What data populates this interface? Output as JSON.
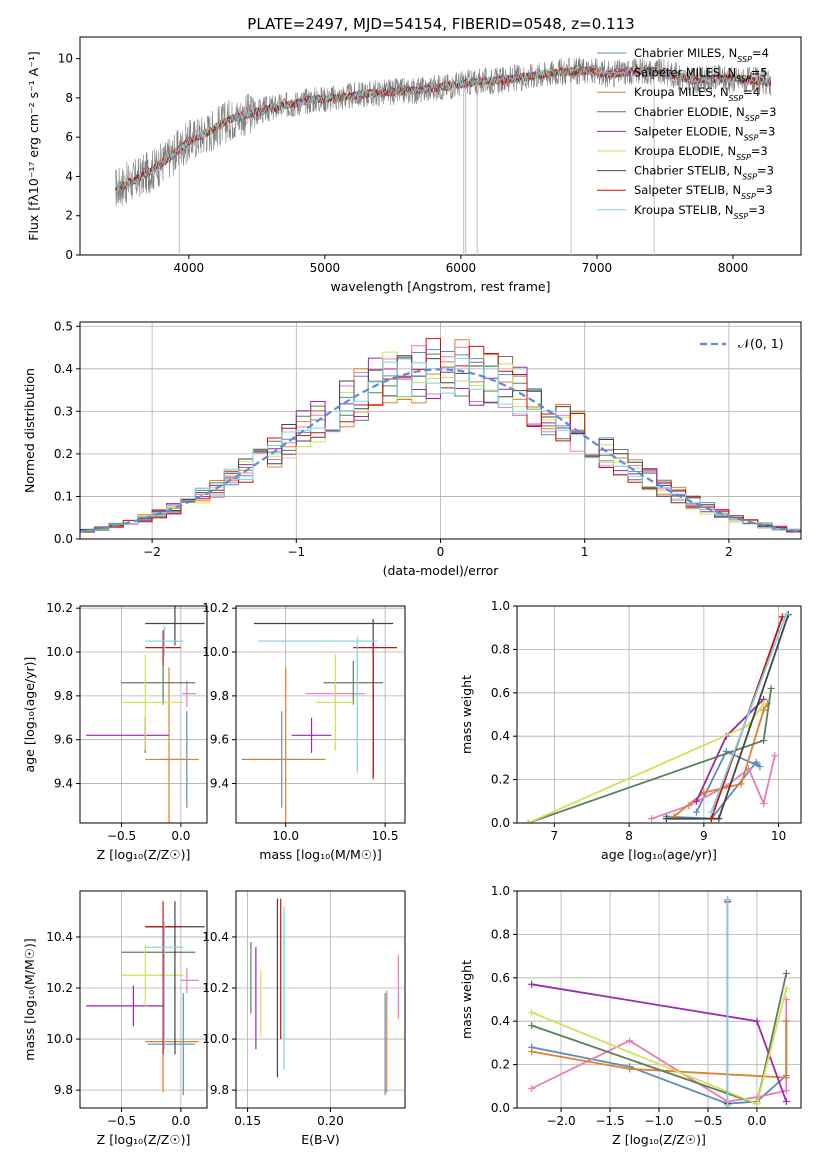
{
  "figure": {
    "title": "PLATE=2497, MJD=54154, FIBERID=0548, z=0.113"
  },
  "models": [
    {
      "name": "Chabrier MILES",
      "nssp": "4",
      "color": "#5a8dbf"
    },
    {
      "name": "Salpeter MILES",
      "nssp": "5",
      "color": "#e87db8"
    },
    {
      "name": "Kroupa MILES",
      "nssp": "4",
      "color": "#e0822d"
    },
    {
      "name": "Chabrier ELODIE",
      "nssp": "3",
      "color": "#5c7f5c"
    },
    {
      "name": "Salpeter ELODIE",
      "nssp": "3",
      "color": "#9c27b0"
    },
    {
      "name": "Kroupa ELODIE",
      "nssp": "3",
      "color": "#d4e157"
    },
    {
      "name": "Chabrier STELIB",
      "nssp": "3",
      "color": "#444444"
    },
    {
      "name": "Salpeter STELIB",
      "nssp": "3",
      "color": "#cc1111"
    },
    {
      "name": "Kroupa STELIB",
      "nssp": "3",
      "color": "#7dd3e0"
    }
  ],
  "chart_data": [
    {
      "id": "spectrum",
      "type": "line",
      "xlabel": "wavelength [Angstrom, rest frame]",
      "ylabel": "Flux [fλ10⁻¹⁷ erg cm⁻² s⁻¹ A⁻¹]",
      "xlim": [
        3200,
        8500
      ],
      "ylim": [
        0,
        11.1
      ],
      "xticks": [
        "4000",
        "5000",
        "6000",
        "7000",
        "8000"
      ],
      "yticks": [
        "0",
        "2",
        "4",
        "6",
        "8",
        "10"
      ],
      "data_color": "#808080",
      "model_anchor_x": [
        3460,
        3600,
        3750,
        3900,
        4000,
        4150,
        4300,
        4500,
        4700,
        4900,
        5100,
        5300,
        5500,
        5700,
        5900,
        6100,
        6300,
        6500,
        6700,
        6900,
        7100,
        7300,
        7500,
        7700,
        7900,
        8100,
        8280
      ],
      "model_anchor_y": [
        3.4,
        3.8,
        4.4,
        5.2,
        5.8,
        6.3,
        6.9,
        7.3,
        7.6,
        7.9,
        8.0,
        8.2,
        8.3,
        8.4,
        8.6,
        8.8,
        8.9,
        9.1,
        9.3,
        9.4,
        9.2,
        9.4,
        9.3,
        8.9,
        9.0,
        8.9,
        8.8
      ],
      "data_x_range": [
        3460,
        8280
      ],
      "dips": [
        {
          "x": 3930,
          "y": 0
        },
        {
          "x": 6020,
          "y": 0
        },
        {
          "x": 6035,
          "y": 0
        },
        {
          "x": 6120,
          "y": 0
        },
        {
          "x": 6810,
          "y": 0
        },
        {
          "x": 7420,
          "y": 0
        }
      ]
    },
    {
      "id": "residuals",
      "type": "bar",
      "xlabel": "(data-model)/error",
      "ylabel": "Normed distribution",
      "xlim": [
        -2.5,
        2.5
      ],
      "ylim": [
        0,
        0.51
      ],
      "xticks": [
        "−2",
        "−1",
        "0",
        "1",
        "2"
      ],
      "yticks": [
        "0.0",
        "0.1",
        "0.2",
        "0.3",
        "0.4",
        "0.5"
      ],
      "bin_width": 0.1,
      "gaussian_label": "𝒩(0, 1)",
      "gaussian_color": "#5a8dd6"
    },
    {
      "id": "age_vs_Z",
      "type": "scatter",
      "xlabel": "Z [log₁₀(Z/Z☉)]",
      "ylabel": "age  [log₁₀(age/yr)]",
      "xlim": [
        -0.85,
        0.22
      ],
      "ylim": [
        9.22,
        10.21
      ],
      "xticks": [
        "−0.5",
        "0.0"
      ],
      "yticks": [
        "9.4",
        "9.6",
        "9.8",
        "10.0",
        "10.2"
      ],
      "points": [
        {
          "model": 0,
          "x": 0.05,
          "y": 9.51,
          "xerr": [
            0.25,
            0.02
          ],
          "yerr": [
            0.22,
            0.22
          ]
        },
        {
          "model": 1,
          "x": 0.05,
          "y": 9.81,
          "xerr": [
            0.04,
            0.08
          ],
          "yerr": [
            0.06,
            0.06
          ]
        },
        {
          "model": 2,
          "x": -0.1,
          "y": 9.51,
          "xerr": [
            0.2,
            0.25
          ],
          "yerr": [
            0.42,
            0.42
          ]
        },
        {
          "model": 3,
          "x": -0.15,
          "y": 9.86,
          "xerr": [
            0.35,
            0.27
          ],
          "yerr": [
            0.1,
            0.1
          ]
        },
        {
          "model": 4,
          "x": -0.3,
          "y": 9.62,
          "xerr": [
            0.5,
            0.2
          ],
          "yerr": [
            0.08,
            0.08
          ]
        },
        {
          "model": 5,
          "x": -0.3,
          "y": 9.77,
          "xerr": [
            0.2,
            0.32
          ],
          "yerr": [
            0.22,
            0.22
          ]
        },
        {
          "model": 6,
          "x": -0.05,
          "y": 10.13,
          "xerr": [
            0.25,
            0.25
          ],
          "yerr": [
            0.1,
            0.1
          ]
        },
        {
          "model": 7,
          "x": -0.15,
          "y": 10.02,
          "xerr": [
            0.15,
            0.15
          ],
          "yerr": [
            0.08,
            0.08
          ]
        },
        {
          "model": 8,
          "x": -0.14,
          "y": 10.05,
          "xerr": [
            0.16,
            0.16
          ],
          "yerr": [
            0.07,
            0.07
          ]
        }
      ]
    },
    {
      "id": "age_vs_mass",
      "type": "scatter",
      "xlabel": "mass [log₁₀(M/M☉)]",
      "ylabel": "",
      "xlim": [
        9.75,
        10.6
      ],
      "ylim": [
        9.22,
        10.21
      ],
      "xticks": [
        "10.0",
        "10.5"
      ],
      "yticks": [
        "9.4",
        "9.6",
        "9.8",
        "10.0",
        "10.2"
      ],
      "points": [
        {
          "model": 0,
          "x": 9.98,
          "y": 9.51,
          "xerr": [
            0.2,
            0.2
          ],
          "yerr": [
            0.22,
            0.22
          ]
        },
        {
          "model": 1,
          "x": 10.25,
          "y": 9.81,
          "xerr": [
            0.15,
            0.15
          ],
          "yerr": [
            0.06,
            0.06
          ]
        },
        {
          "model": 2,
          "x": 10.0,
          "y": 9.51,
          "xerr": [
            0.2,
            0.2
          ],
          "yerr": [
            0.42,
            0.42
          ]
        },
        {
          "model": 3,
          "x": 10.34,
          "y": 9.86,
          "xerr": [
            0.15,
            0.15
          ],
          "yerr": [
            0.1,
            0.1
          ]
        },
        {
          "model": 4,
          "x": 10.13,
          "y": 9.62,
          "xerr": [
            0.1,
            0.1
          ],
          "yerr": [
            0.08,
            0.08
          ]
        },
        {
          "model": 5,
          "x": 10.25,
          "y": 9.77,
          "xerr": [
            0.1,
            0.1
          ],
          "yerr": [
            0.22,
            0.22
          ]
        },
        {
          "model": 6,
          "x": 10.44,
          "y": 10.13,
          "xerr": [
            0.6,
            0.1
          ],
          "yerr": [
            0.7,
            0.02
          ]
        },
        {
          "model": 7,
          "x": 10.44,
          "y": 10.02,
          "xerr": [
            0.1,
            0.12
          ],
          "yerr": [
            0.6,
            0.02
          ]
        },
        {
          "model": 8,
          "x": 10.36,
          "y": 10.05,
          "xerr": [
            0.5,
            0.1
          ],
          "yerr": [
            0.6,
            0.02
          ]
        }
      ]
    },
    {
      "id": "mass_weight_vs_age",
      "type": "line",
      "xlabel": "age  [log₁₀(age/yr)]",
      "ylabel": "mass weight",
      "xlim": [
        6.5,
        10.3
      ],
      "ylim": [
        0,
        1.0
      ],
      "xticks": [
        "7",
        "8",
        "9",
        "10"
      ],
      "yticks": [
        "0.0",
        "0.2",
        "0.4",
        "0.6",
        "0.8",
        "1.0"
      ],
      "series": [
        {
          "model": 0,
          "points": [
            [
              8.5,
              0.03
            ],
            [
              9.1,
              0.02
            ],
            [
              9.7,
              0.28
            ],
            [
              9.75,
              0.26
            ],
            [
              9.3,
              0.33
            ],
            [
              8.9,
              0.05
            ]
          ]
        },
        {
          "model": 1,
          "points": [
            [
              8.3,
              0.02
            ],
            [
              8.8,
              0.08
            ],
            [
              9.3,
              0.17
            ],
            [
              9.6,
              0.25
            ],
            [
              9.8,
              0.09
            ],
            [
              9.95,
              0.31
            ]
          ]
        },
        {
          "model": 2,
          "points": [
            [
              8.6,
              0.03
            ],
            [
              9.0,
              0.14
            ],
            [
              9.5,
              0.18
            ],
            [
              9.8,
              0.52
            ],
            [
              9.85,
              0.55
            ]
          ]
        },
        {
          "model": 3,
          "points": [
            [
              6.65,
              0.0
            ],
            [
              9.8,
              0.38
            ],
            [
              9.9,
              0.62
            ]
          ]
        },
        {
          "model": 4,
          "points": [
            [
              8.9,
              0.1
            ],
            [
              9.3,
              0.4
            ],
            [
              9.8,
              0.57
            ]
          ]
        },
        {
          "model": 5,
          "points": [
            [
              6.65,
              0.0
            ],
            [
              9.6,
              0.45
            ],
            [
              9.8,
              0.55
            ]
          ]
        },
        {
          "model": 6,
          "points": [
            [
              8.5,
              0.02
            ],
            [
              9.2,
              0.02
            ],
            [
              10.13,
              0.96
            ]
          ]
        },
        {
          "model": 7,
          "points": [
            [
              9.1,
              0.02
            ],
            [
              10.05,
              0.95
            ]
          ]
        },
        {
          "model": 8,
          "points": [
            [
              9.1,
              0.05
            ],
            [
              10.1,
              0.96
            ]
          ]
        }
      ]
    },
    {
      "id": "mass_vs_Z",
      "type": "scatter",
      "xlabel": "Z [log₁₀(Z/Z☉)]",
      "ylabel": "mass [log₁₀(M/M☉)]",
      "xlim": [
        -0.85,
        0.22
      ],
      "ylim": [
        9.73,
        10.58
      ],
      "xticks": [
        "−0.5",
        "0.0"
      ],
      "yticks": [
        "9.8",
        "10.0",
        "10.2",
        "10.4"
      ],
      "points": [
        {
          "model": 0,
          "x": 0.02,
          "y": 9.98,
          "xerr": [
            0.3,
            0.1
          ],
          "yerr": [
            0.2,
            0.2
          ]
        },
        {
          "model": 1,
          "x": 0.05,
          "y": 10.23,
          "xerr": [
            0.05,
            0.1
          ],
          "yerr": [
            0.05,
            0.05
          ]
        },
        {
          "model": 2,
          "x": -0.15,
          "y": 9.99,
          "xerr": [
            0.15,
            0.3
          ],
          "yerr": [
            0.2,
            0.2
          ]
        },
        {
          "model": 3,
          "x": -0.15,
          "y": 10.34,
          "xerr": [
            0.35,
            0.27
          ],
          "yerr": [
            0.1,
            0.1
          ]
        },
        {
          "model": 4,
          "x": -0.4,
          "y": 10.13,
          "xerr": [
            0.4,
            0.25
          ],
          "yerr": [
            0.08,
            0.08
          ]
        },
        {
          "model": 5,
          "x": -0.3,
          "y": 10.25,
          "xerr": [
            0.2,
            0.32
          ],
          "yerr": [
            0.12,
            0.12
          ]
        },
        {
          "model": 6,
          "x": -0.05,
          "y": 10.44,
          "xerr": [
            0.25,
            0.25
          ],
          "yerr": [
            0.5,
            0.1
          ]
        },
        {
          "model": 7,
          "x": -0.15,
          "y": 10.44,
          "xerr": [
            0.15,
            0.15
          ],
          "yerr": [
            0.5,
            0.1
          ]
        },
        {
          "model": 8,
          "x": -0.14,
          "y": 10.36,
          "xerr": [
            0.16,
            0.16
          ],
          "yerr": [
            0.4,
            0.1
          ]
        }
      ]
    },
    {
      "id": "mass_vs_ebv",
      "type": "scatter",
      "xlabel": "E(B-V)",
      "ylabel": "",
      "xlim": [
        0.143,
        0.245
      ],
      "ylim": [
        9.73,
        10.58
      ],
      "xticks": [
        "0.15",
        "0.20"
      ],
      "yticks": [
        "9.8",
        "10.0",
        "10.2",
        "10.4"
      ],
      "points": [
        {
          "model": 0,
          "x": 0.233,
          "y": 9.98,
          "yerr": [
            0.2,
            0.2
          ]
        },
        {
          "model": 1,
          "x": 0.241,
          "y": 10.23,
          "yerr": [
            0.15,
            0.1
          ]
        },
        {
          "model": 2,
          "x": 0.234,
          "y": 9.99,
          "yerr": [
            0.2,
            0.2
          ]
        },
        {
          "model": 3,
          "x": 0.152,
          "y": 10.25,
          "yerr": [
            0.15,
            0.13
          ]
        },
        {
          "model": 4,
          "x": 0.155,
          "y": 10.16,
          "yerr": [
            0.2,
            0.2
          ]
        },
        {
          "model": 5,
          "x": 0.158,
          "y": 10.14,
          "yerr": [
            0.13,
            0.13
          ]
        },
        {
          "model": 6,
          "x": 0.168,
          "y": 10.2,
          "yerr": [
            0.35,
            0.35
          ]
        },
        {
          "model": 7,
          "x": 0.17,
          "y": 10.3,
          "yerr": [
            0.3,
            0.25
          ]
        },
        {
          "model": 8,
          "x": 0.172,
          "y": 10.2,
          "yerr": [
            0.32,
            0.32
          ]
        }
      ]
    },
    {
      "id": "mass_weight_vs_Z",
      "type": "line",
      "xlabel": "Z [log₁₀(Z/Z☉)]",
      "ylabel": "mass weight",
      "xlim": [
        -2.45,
        0.45
      ],
      "ylim": [
        0,
        1.0
      ],
      "xticks": [
        "−2.0",
        "−1.5",
        "−1.0",
        "−0.5",
        "0.0"
      ],
      "yticks": [
        "0.0",
        "0.2",
        "0.4",
        "0.6",
        "0.8",
        "1.0"
      ],
      "series": [
        {
          "model": 0,
          "points": [
            [
              -2.3,
              0.28
            ],
            [
              -1.3,
              0.19
            ],
            [
              -0.3,
              0.02
            ],
            [
              0.0,
              0.03
            ],
            [
              0.3,
              0.15
            ],
            [
              0.3,
              0.4
            ]
          ]
        },
        {
          "model": 1,
          "points": [
            [
              -2.3,
              0.09
            ],
            [
              -1.3,
              0.31
            ],
            [
              -0.3,
              0.03
            ],
            [
              0.0,
              0.05
            ],
            [
              0.3,
              0.08
            ],
            [
              0.3,
              0.5
            ]
          ]
        },
        {
          "model": 2,
          "points": [
            [
              -2.3,
              0.26
            ],
            [
              -1.3,
              0.18
            ],
            [
              0.3,
              0.14
            ],
            [
              0.3,
              0.4
            ]
          ]
        },
        {
          "model": 3,
          "points": [
            [
              -2.3,
              0.38
            ],
            [
              0.0,
              0.02
            ],
            [
              0.3,
              0.62
            ]
          ]
        },
        {
          "model": 4,
          "points": [
            [
              -2.3,
              0.57
            ],
            [
              0.0,
              0.4
            ],
            [
              0.3,
              0.03
            ]
          ]
        },
        {
          "model": 5,
          "points": [
            [
              -2.3,
              0.44
            ],
            [
              0.0,
              0.02
            ],
            [
              0.3,
              0.55
            ]
          ]
        },
        {
          "model": 6,
          "points": [
            [
              -0.3,
              0.02
            ],
            [
              -0.3,
              0.96
            ]
          ]
        },
        {
          "model": 7,
          "points": [
            [
              -0.3,
              0.02
            ],
            [
              -0.3,
              0.95
            ]
          ]
        },
        {
          "model": 8,
          "points": [
            [
              -0.3,
              0.01
            ],
            [
              -0.3,
              0.96
            ]
          ]
        }
      ]
    }
  ]
}
